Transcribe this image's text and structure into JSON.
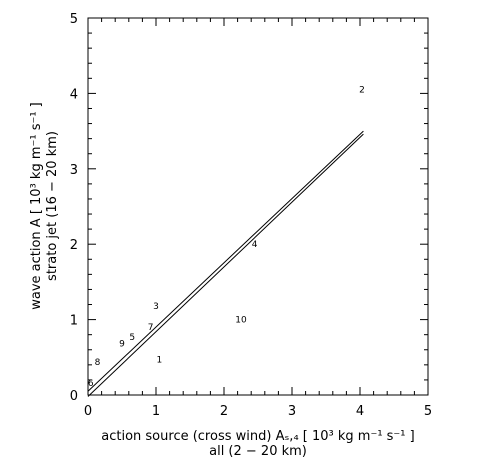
{
  "chart_data": {
    "type": "scatter",
    "title": "",
    "xlabel_line1": "action source (cross wind) Aₛ,₄ [ 10³ kg m⁻¹ s⁻¹ ]",
    "xlabel_line2": "all (2 − 20 km)",
    "ylabel_line1": "wave action A [ 10³ kg m⁻¹ s⁻¹ ]",
    "ylabel_line2": "strato jet (16 − 20 km)",
    "xlim": [
      0,
      5
    ],
    "ylim": [
      0,
      5
    ],
    "x_ticks": [
      0,
      1,
      2,
      3,
      4,
      5
    ],
    "y_ticks": [
      0,
      1,
      2,
      3,
      4,
      5
    ],
    "x_tick_labels": [
      "0",
      "1",
      "2",
      "3",
      "4",
      "5"
    ],
    "y_tick_labels": [
      "0",
      "1",
      "2",
      "3",
      "4",
      "5"
    ],
    "points": [
      {
        "label": "2",
        "x": 4.03,
        "y": 4.05
      },
      {
        "label": "4",
        "x": 2.45,
        "y": 2.0
      },
      {
        "label": "3",
        "x": 1.0,
        "y": 1.18
      },
      {
        "label": "7",
        "x": 0.92,
        "y": 0.9
      },
      {
        "label": "10",
        "x": 2.25,
        "y": 1.0
      },
      {
        "label": "5",
        "x": 0.65,
        "y": 0.77
      },
      {
        "label": "9",
        "x": 0.5,
        "y": 0.68
      },
      {
        "label": "1",
        "x": 1.05,
        "y": 0.47
      },
      {
        "label": "8",
        "x": 0.14,
        "y": 0.44
      },
      {
        "label": "6",
        "x": 0.04,
        "y": 0.16
      }
    ],
    "lines": [
      {
        "x": [
          0,
          4.05
        ],
        "y": [
          0.05,
          3.5
        ]
      },
      {
        "x": [
          0,
          4.05
        ],
        "y": [
          -0.02,
          3.46
        ]
      }
    ],
    "colors": {
      "ink": "#000000",
      "background": "#ffffff"
    }
  }
}
